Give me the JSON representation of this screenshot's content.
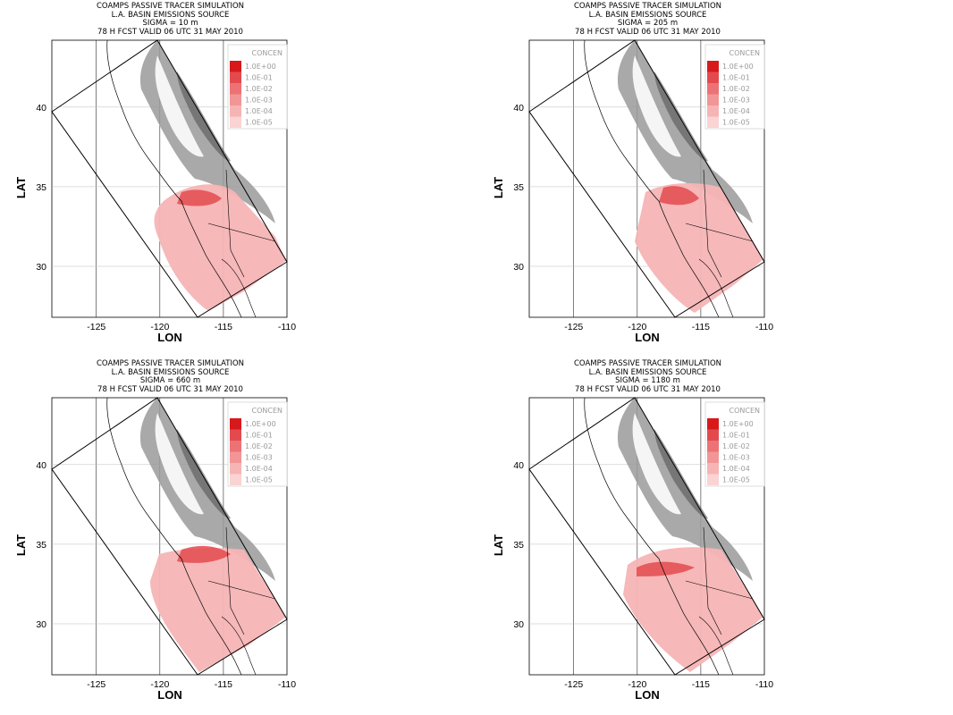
{
  "panels": [
    {
      "title_line1": "COAMPS PASSIVE TRACER SIMULATION",
      "title_line2": "L.A. BASIN EMISSIONS SOURCE",
      "title_line3": "SIGMA = 10 m",
      "title_line4": "78 H FCST VALID 06 UTC 31 MAY 2010"
    },
    {
      "title_line1": "COAMPS PASSIVE TRACER SIMULATION",
      "title_line2": "L.A. BASIN EMISSIONS SOURCE",
      "title_line3": "SIGMA = 205 m",
      "title_line4": "78 H FCST VALID 06 UTC 31 MAY 2010"
    },
    {
      "title_line1": "COAMPS PASSIVE TRACER SIMULATION",
      "title_line2": "L.A. BASIN EMISSIONS SOURCE",
      "title_line3": "SIGMA = 660 m",
      "title_line4": "78 H FCST VALID 06 UTC 31 MAY 2010"
    },
    {
      "title_line1": "COAMPS PASSIVE TRACER SIMULATION",
      "title_line2": "L.A. BASIN EMISSIONS SOURCE",
      "title_line3": "SIGMA = 1180 m",
      "title_line4": "78 H FCST VALID 06 UTC 31 MAY 2010"
    }
  ],
  "axes": {
    "xlabel": "LON",
    "ylabel": "LAT",
    "xticks": [
      "-125",
      "-120",
      "-115",
      "-110"
    ],
    "yticks": [
      "40",
      "35",
      "30"
    ]
  },
  "legend": {
    "title": "CONCEN",
    "entries": [
      "1.0E+00",
      "1.0E-01",
      "1.0E-02",
      "1.0E-03",
      "1.0E-04",
      "1.0E-05"
    ],
    "colors": [
      "#d7191c",
      "#e34a4e",
      "#ec7275",
      "#f29596",
      "#f6b4b5",
      "#fad3d3"
    ]
  }
}
